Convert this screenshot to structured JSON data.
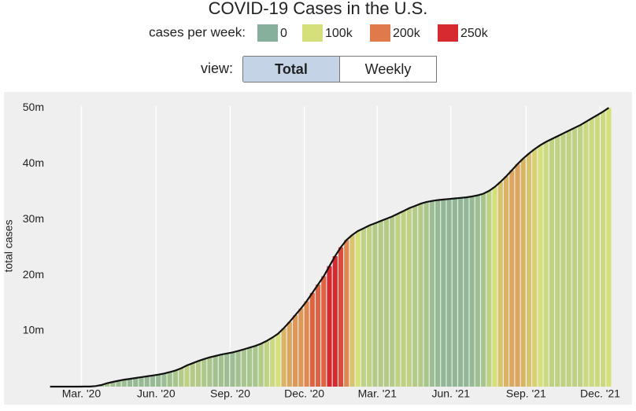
{
  "chart_data": {
    "type": "bar",
    "title": "COVID-19 Cases in the U.S.",
    "legend_title": "cases per week:",
    "color_scale": [
      {
        "value": 0,
        "label": "0",
        "color": "#86b09b"
      },
      {
        "value": 100000,
        "label": "100k",
        "color": "#d6e07a"
      },
      {
        "value": 200000,
        "label": "200k",
        "color": "#e07a4a"
      },
      {
        "value": 250000,
        "label": "250k",
        "color": "#d42a30"
      }
    ],
    "view": {
      "label": "view:",
      "options": [
        "Total",
        "Weekly"
      ],
      "selected": "Total"
    },
    "y_label": "total cases",
    "x": [
      0,
      1,
      2,
      3,
      4,
      5,
      6,
      7,
      8,
      9,
      10,
      11,
      12,
      13,
      14,
      15,
      16,
      17,
      18,
      19,
      20,
      21,
      22,
      23,
      24,
      25,
      26,
      27,
      28,
      29,
      30,
      31,
      32,
      33,
      34,
      35,
      36,
      37,
      38,
      39,
      40,
      41,
      42,
      43,
      44,
      45,
      46,
      47,
      48,
      49,
      50,
      51,
      52,
      53,
      54,
      55,
      56,
      57,
      58,
      59,
      60,
      61,
      62,
      63,
      64,
      65,
      66,
      67,
      68,
      69,
      70,
      71,
      72,
      73,
      74,
      75,
      76,
      77,
      78,
      79,
      80,
      81,
      82,
      83,
      84,
      85,
      86,
      87,
      88,
      89,
      90,
      91,
      92,
      93,
      94,
      95,
      96,
      97,
      98
    ],
    "values": [
      0,
      0,
      0,
      0,
      0,
      0,
      0.01,
      0.02,
      0.1,
      0.3,
      0.6,
      0.85,
      1.05,
      1.25,
      1.4,
      1.55,
      1.7,
      1.85,
      2.0,
      2.15,
      2.35,
      2.6,
      2.9,
      3.3,
      3.8,
      4.2,
      4.6,
      4.95,
      5.25,
      5.5,
      5.75,
      5.95,
      6.15,
      6.4,
      6.7,
      7.0,
      7.3,
      7.7,
      8.2,
      8.8,
      9.5,
      10.5,
      11.6,
      12.8,
      14.0,
      15.3,
      16.8,
      18.3,
      19.8,
      21.6,
      23.4,
      25.0,
      26.3,
      27.2,
      27.9,
      28.4,
      28.9,
      29.3,
      29.7,
      30.1,
      30.5,
      31.0,
      31.5,
      32.0,
      32.4,
      32.8,
      33.1,
      33.3,
      33.45,
      33.55,
      33.65,
      33.75,
      33.85,
      33.95,
      34.1,
      34.3,
      34.6,
      35.1,
      35.8,
      36.7,
      37.7,
      38.8,
      39.9,
      40.9,
      41.8,
      42.6,
      43.3,
      43.9,
      44.4,
      44.9,
      45.4,
      45.9,
      46.4,
      46.9,
      47.5,
      48.1,
      48.7,
      49.3,
      50.0
    ],
    "xlim": [
      -0.5,
      98.5
    ],
    "xticks": [
      {
        "value": 5.5,
        "label": "Mar. '20"
      },
      {
        "value": 18.6,
        "label": "Jun. '20"
      },
      {
        "value": 31.6,
        "label": "Sep. '20"
      },
      {
        "value": 44.6,
        "label": "Dec. '20"
      },
      {
        "value": 57.4,
        "label": "Mar. '21"
      },
      {
        "value": 70.3,
        "label": "Jun. '21"
      },
      {
        "value": 83.5,
        "label": "Sep. '21"
      },
      {
        "value": 96.5,
        "label": "Dec. '21"
      }
    ],
    "ylim": [
      0,
      52.7
    ],
    "yticks": [
      {
        "value": 10,
        "label": "10m"
      },
      {
        "value": 20,
        "label": "20m"
      },
      {
        "value": 30,
        "label": "30m"
      },
      {
        "value": 40,
        "label": "40m"
      },
      {
        "value": 50,
        "label": "50m"
      }
    ],
    "line_color": "#111111",
    "grid": true
  }
}
